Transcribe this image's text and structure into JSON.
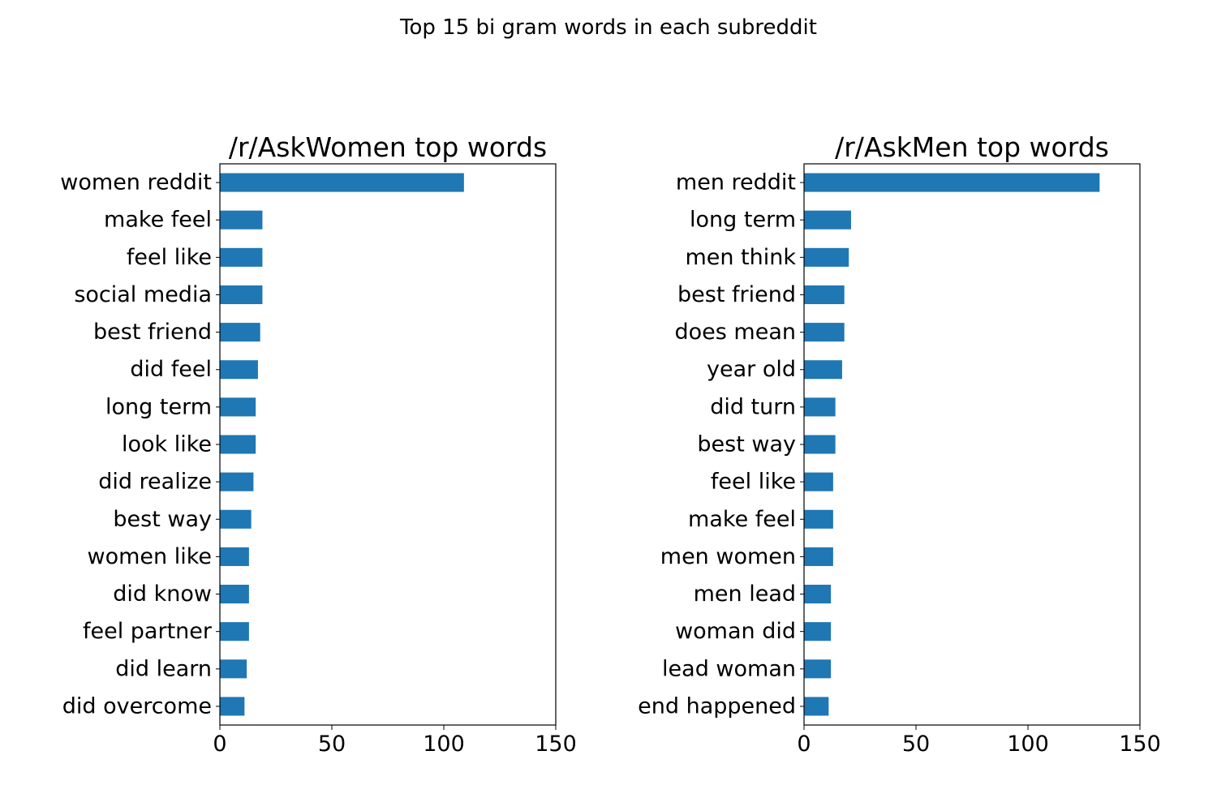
{
  "figure_title": "Top 15 bi gram words in each subreddit",
  "chart_data": [
    {
      "type": "bar",
      "orientation": "horizontal",
      "title": "/r/AskWomen top words",
      "xlabel": "",
      "ylabel": "",
      "xlim": [
        0,
        150
      ],
      "xticks": [
        0,
        50,
        100,
        150
      ],
      "bar_color": "#1f77b4",
      "categories": [
        "women reddit",
        "make feel",
        "feel like",
        "social media",
        "best friend",
        "did feel",
        "long term",
        "look like",
        "did realize",
        "best way",
        "women like",
        "did know",
        "feel partner",
        "did learn",
        "did overcome"
      ],
      "values": [
        109,
        19,
        19,
        19,
        18,
        17,
        16,
        16,
        15,
        14,
        13,
        13,
        13,
        12,
        11
      ]
    },
    {
      "type": "bar",
      "orientation": "horizontal",
      "title": "/r/AskMen top words",
      "xlabel": "",
      "ylabel": "",
      "xlim": [
        0,
        150
      ],
      "xticks": [
        0,
        50,
        100,
        150
      ],
      "bar_color": "#1f77b4",
      "categories": [
        "men reddit",
        "long term",
        "men think",
        "best friend",
        "does mean",
        "year old",
        "did turn",
        "best way",
        "feel like",
        "make feel",
        "men women",
        "men lead",
        "woman did",
        "lead woman",
        "end happened"
      ],
      "values": [
        132,
        21,
        20,
        18,
        18,
        17,
        14,
        14,
        13,
        13,
        13,
        12,
        12,
        12,
        11
      ]
    }
  ]
}
